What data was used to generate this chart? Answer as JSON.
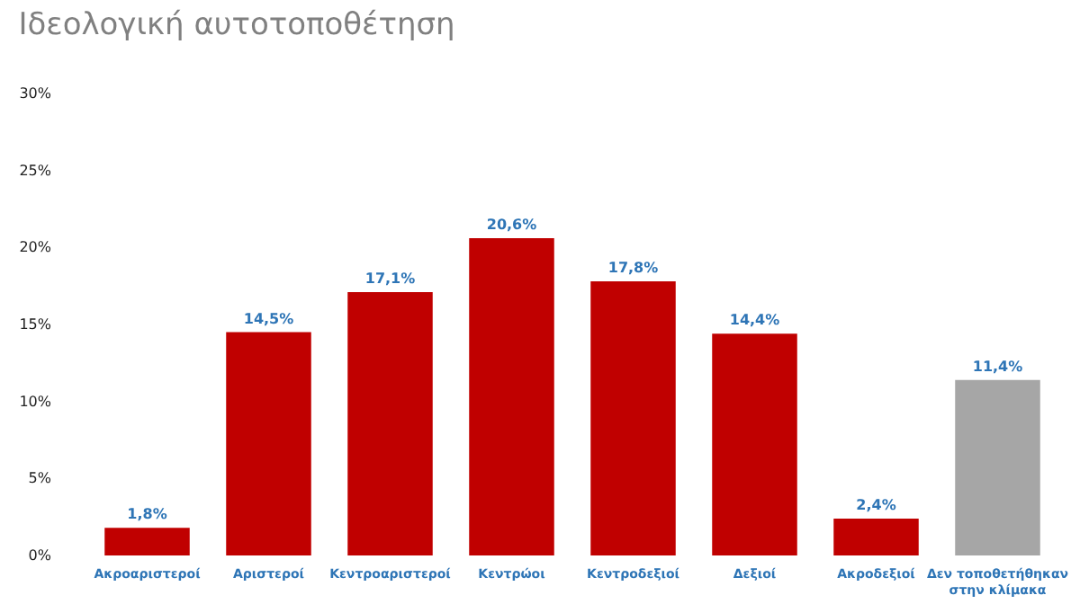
{
  "chart_data": {
    "type": "bar",
    "title": "Ιδεολογική αυτοτοποθέτηση",
    "categories": [
      "Ακροαριστεροί",
      "Αριστεροί",
      "Κεντροαριστεροί",
      "Κεντρώοι",
      "Κεντροδεξιοί",
      "Δεξιοί",
      "Ακροδεξιοί",
      "Δεν τοποθετήθηκαν στην κλίμακα"
    ],
    "values": [
      1.8,
      14.5,
      17.1,
      20.6,
      17.8,
      14.4,
      2.4,
      11.4
    ],
    "colors": [
      "#c00000",
      "#c00000",
      "#c00000",
      "#c00000",
      "#c00000",
      "#c00000",
      "#c00000",
      "#a6a6a6"
    ],
    "value_labels": [
      "1,8%",
      "14,5%",
      "17,1%",
      "20,6%",
      "17,8%",
      "14,4%",
      "2,4%",
      "11,4%"
    ],
    "ylim": [
      0,
      30
    ],
    "yticks": [
      {
        "value": 0,
        "label": "0%"
      },
      {
        "value": 5,
        "label": "5%"
      },
      {
        "value": 10,
        "label": "10%"
      },
      {
        "value": 15,
        "label": "15%"
      },
      {
        "value": 20,
        "label": "20%"
      },
      {
        "value": 25,
        "label": "25%"
      },
      {
        "value": 30,
        "label": "30%"
      }
    ],
    "grid": false
  }
}
